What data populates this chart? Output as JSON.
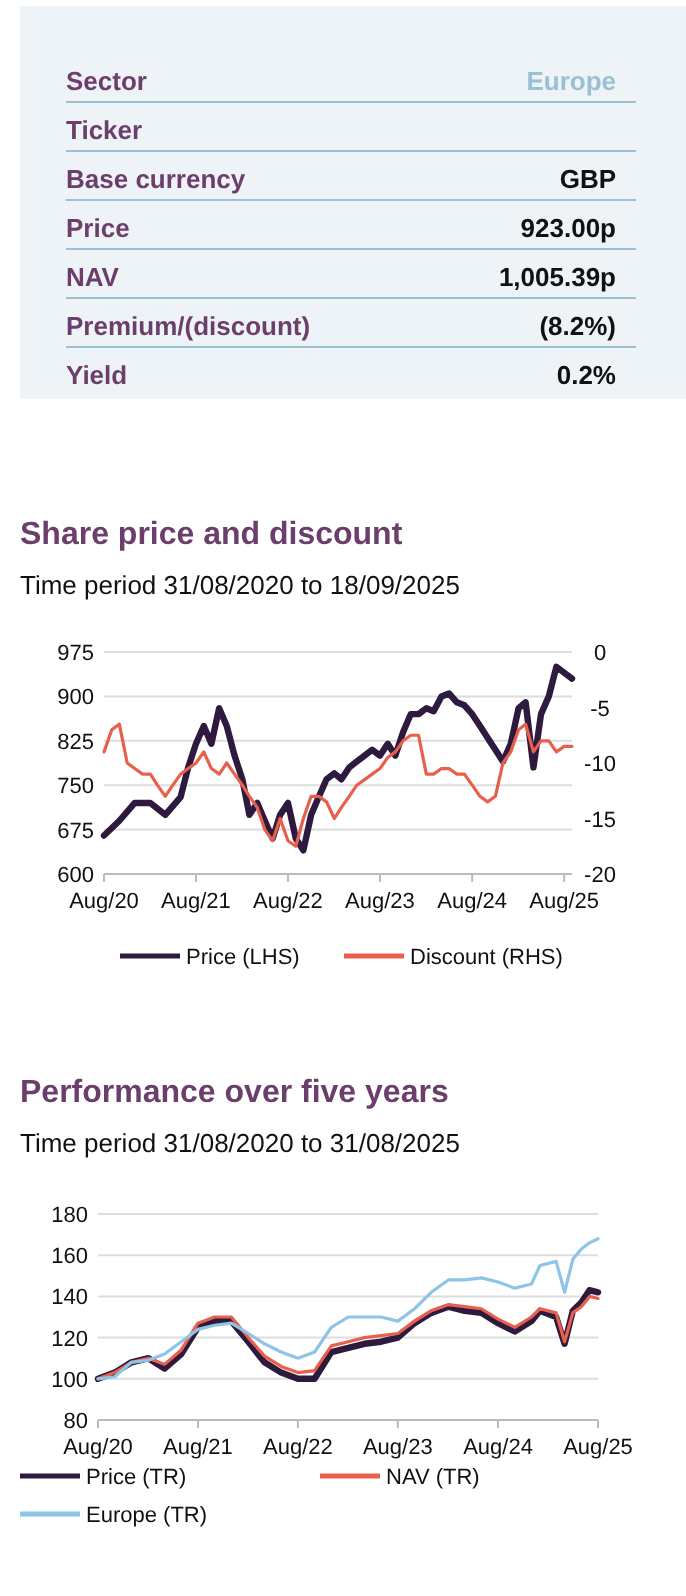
{
  "chart_data": [
    {
      "type": "other",
      "categories": [
        "Sector",
        "Ticker",
        "Base currency",
        "Price",
        "NAV",
        "Premium/(discount)",
        "Yield"
      ],
      "value_labels": [
        "Europe",
        null,
        "GBP",
        "923.00p",
        "1,005.39p",
        "(8.2%)",
        "0.2%"
      ]
    },
    {
      "type": "line",
      "title": "Share price and discount",
      "subtitle": "Time period 31/08/2020 to 18/09/2025",
      "xlim": [
        "2020-08",
        "2025-09"
      ],
      "xticks": [
        {
          "value": "2020-08",
          "label": "Aug/20"
        },
        {
          "value": "2021-08",
          "label": "Aug/21"
        },
        {
          "value": "2022-08",
          "label": "Aug/22"
        },
        {
          "value": "2023-08",
          "label": "Aug/23"
        },
        {
          "value": "2024-08",
          "label": "Aug/24"
        },
        {
          "value": "2025-08",
          "label": "Aug/25"
        }
      ],
      "ylim": [
        600,
        975
      ],
      "yticks": [
        600,
        675,
        750,
        825,
        900,
        975
      ],
      "y2lim": [
        -20,
        0
      ],
      "y2ticks": [
        -20,
        -15,
        -10,
        -5,
        0
      ],
      "grid": "y",
      "legend": "bottom",
      "series": [
        {
          "name": "Price (LHS)",
          "color": "#2e1a3e",
          "x": [
            "2020-08",
            "2020-10",
            "2020-12",
            "2021-02",
            "2021-04",
            "2021-06",
            "2021-07",
            "2021-08",
            "2021-09",
            "2021-10",
            "2021-11",
            "2021-12",
            "2022-01",
            "2022-02",
            "2022-03",
            "2022-04",
            "2022-05",
            "2022-06",
            "2022-07",
            "2022-08",
            "2022-09",
            "2022-10",
            "2022-11",
            "2022-12",
            "2023-01",
            "2023-02",
            "2023-03",
            "2023-04",
            "2023-05",
            "2023-06",
            "2023-07",
            "2023-08",
            "2023-09",
            "2023-10",
            "2023-11",
            "2023-12",
            "2024-01",
            "2024-02",
            "2024-03",
            "2024-04",
            "2024-05",
            "2024-06",
            "2024-07",
            "2024-08",
            "2024-09",
            "2024-10",
            "2024-11",
            "2024-12",
            "2025-01",
            "2025-02",
            "2025-03",
            "2025-04",
            "2025-05",
            "2025-06",
            "2025-07",
            "2025-08",
            "2025-09"
          ],
          "values": [
            665,
            690,
            720,
            720,
            700,
            730,
            780,
            820,
            850,
            820,
            880,
            850,
            800,
            760,
            700,
            720,
            690,
            660,
            700,
            720,
            660,
            640,
            700,
            730,
            760,
            770,
            760,
            780,
            790,
            800,
            810,
            800,
            820,
            800,
            840,
            870,
            870,
            880,
            875,
            900,
            905,
            890,
            885,
            870,
            850,
            830,
            810,
            790,
            820,
            880,
            890,
            780,
            870,
            900,
            950,
            940,
            930
          ]
        },
        {
          "name": "Discount (RHS)",
          "color": "#e8604c",
          "axis": "y2",
          "x": [
            "2020-08",
            "2020-09",
            "2020-10",
            "2020-11",
            "2020-12",
            "2021-01",
            "2021-02",
            "2021-03",
            "2021-04",
            "2021-05",
            "2021-06",
            "2021-07",
            "2021-08",
            "2021-09",
            "2021-10",
            "2021-11",
            "2021-12",
            "2022-01",
            "2022-02",
            "2022-03",
            "2022-04",
            "2022-05",
            "2022-06",
            "2022-07",
            "2022-08",
            "2022-09",
            "2022-10",
            "2022-11",
            "2022-12",
            "2023-01",
            "2023-02",
            "2023-03",
            "2023-04",
            "2023-05",
            "2023-06",
            "2023-07",
            "2023-08",
            "2023-09",
            "2023-10",
            "2023-11",
            "2023-12",
            "2024-01",
            "2024-02",
            "2024-03",
            "2024-04",
            "2024-05",
            "2024-06",
            "2024-07",
            "2024-08",
            "2024-09",
            "2024-10",
            "2024-11",
            "2024-12",
            "2025-01",
            "2025-02",
            "2025-03",
            "2025-04",
            "2025-05",
            "2025-06",
            "2025-07",
            "2025-08",
            "2025-09"
          ],
          "values": [
            -9,
            -7,
            -6.5,
            -10,
            -10.5,
            -11,
            -11,
            -12,
            -13,
            -12,
            -11,
            -10.5,
            -10,
            -9,
            -10.5,
            -11,
            -10,
            -11,
            -12,
            -13,
            -14,
            -16,
            -17,
            -15,
            -17,
            -17.5,
            -15,
            -13,
            -13,
            -13.5,
            -15,
            -14,
            -13,
            -12,
            -11.5,
            -11,
            -10.5,
            -9.5,
            -9,
            -8,
            -7.5,
            -7.5,
            -11,
            -11,
            -10.5,
            -10.5,
            -11,
            -11,
            -12,
            -13,
            -13.5,
            -13,
            -10,
            -9,
            -7,
            -6.5,
            -9,
            -8,
            -8,
            -9,
            -8.5,
            -8.5
          ]
        }
      ]
    },
    {
      "type": "line",
      "title": "Performance over five years",
      "subtitle": "Time period 31/08/2020 to 31/08/2025",
      "xlim": [
        "2020-08",
        "2025-08"
      ],
      "xticks": [
        {
          "value": "2020-08",
          "label": "Aug/20"
        },
        {
          "value": "2021-08",
          "label": "Aug/21"
        },
        {
          "value": "2022-08",
          "label": "Aug/22"
        },
        {
          "value": "2023-08",
          "label": "Aug/23"
        },
        {
          "value": "2024-08",
          "label": "Aug/24"
        },
        {
          "value": "2025-08",
          "label": "Aug/25"
        }
      ],
      "x": [
        "2020-08",
        "2020-10",
        "2020-12",
        "2021-02",
        "2021-04",
        "2021-06",
        "2021-08",
        "2021-10",
        "2021-12",
        "2022-02",
        "2022-04",
        "2022-06",
        "2022-08",
        "2022-10",
        "2022-12",
        "2023-02",
        "2023-04",
        "2023-06",
        "2023-08",
        "2023-10",
        "2023-12",
        "2024-02",
        "2024-04",
        "2024-06",
        "2024-08",
        "2024-10",
        "2024-12",
        "2025-01",
        "2025-03",
        "2025-04",
        "2025-05",
        "2025-06",
        "2025-07",
        "2025-08"
      ],
      "ylim": [
        80,
        180
      ],
      "yticks": [
        80,
        100,
        120,
        140,
        160,
        180
      ],
      "grid": "y",
      "legend": "bottom",
      "series": [
        {
          "name": "Price (TR)",
          "color": "#2e1a3e",
          "values": [
            100,
            103,
            108,
            110,
            105,
            112,
            125,
            128,
            128,
            118,
            108,
            103,
            100,
            100,
            113,
            115,
            117,
            118,
            120,
            127,
            132,
            135,
            133,
            132,
            127,
            123,
            128,
            133,
            130,
            117,
            133,
            137,
            143,
            142
          ]
        },
        {
          "name": "NAV (TR)",
          "color": "#e8604c",
          "values": [
            100,
            103,
            108,
            110,
            107,
            114,
            127,
            130,
            130,
            120,
            111,
            106,
            103,
            104,
            116,
            118,
            120,
            121,
            122,
            128,
            133,
            136,
            135,
            134,
            129,
            125,
            130,
            134,
            132,
            118,
            132,
            135,
            140,
            139
          ]
        },
        {
          "name": "Europe (TR)",
          "color": "#8ec5e6",
          "values": [
            100,
            101,
            108,
            109,
            112,
            118,
            124,
            126,
            127,
            122,
            117,
            113,
            110,
            113,
            125,
            130,
            130,
            130,
            128,
            134,
            142,
            148,
            148,
            149,
            147,
            144,
            146,
            155,
            157,
            142,
            158,
            163,
            166,
            168
          ]
        }
      ]
    }
  ]
}
